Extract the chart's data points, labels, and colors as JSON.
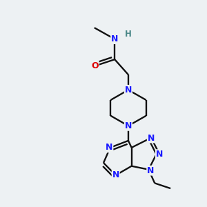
{
  "bg_color": "#edf1f3",
  "N_color": "#1a1aff",
  "O_color": "#dd0000",
  "H_color": "#4a8888",
  "bond_color": "#111111",
  "fig_w": 3.0,
  "fig_h": 3.0,
  "dpi": 100,
  "xlim": [
    0,
    10
  ],
  "ylim": [
    0,
    10
  ],
  "lw": 1.7,
  "fs": 9.0,
  "dbl_off": 0.14,
  "dbl_shrink": 0.1
}
